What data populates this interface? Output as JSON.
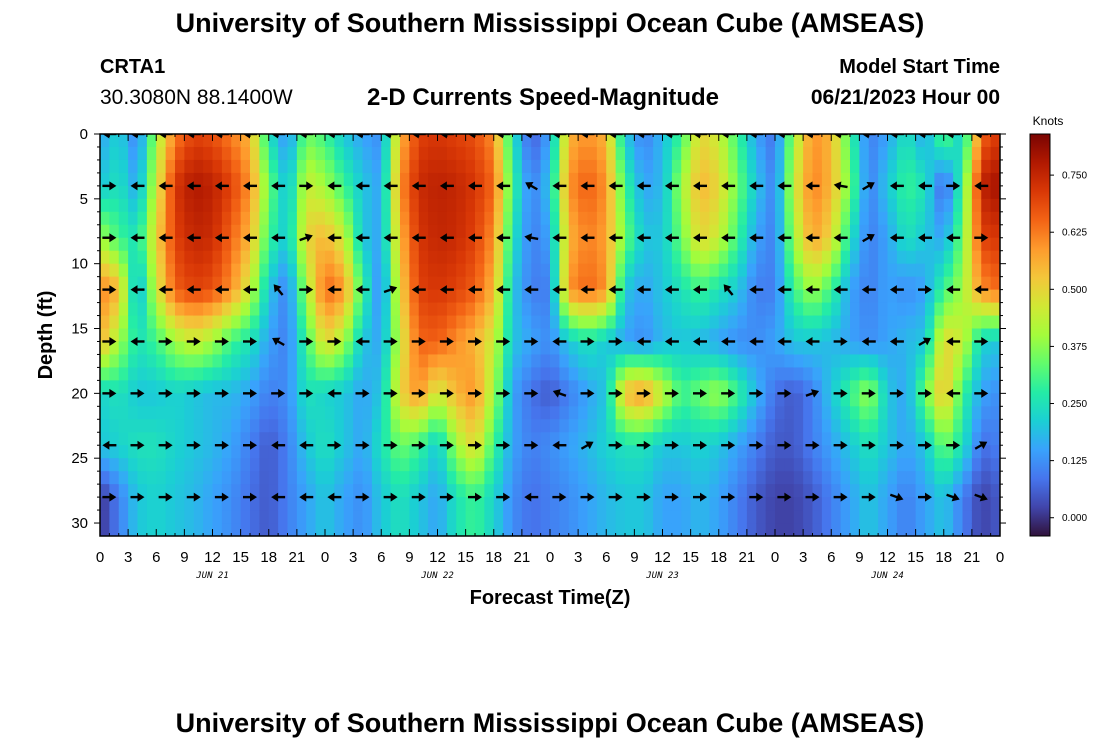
{
  "header": {
    "title": "University of Southern Mississippi Ocean Cube (AMSEAS)",
    "station_id": "CRTA1",
    "station_coords": "30.3080N  88.1400W",
    "subtitle": "2-D Currents Speed-Magnitude",
    "model_start_label": "Model Start Time",
    "model_start_value": "06/21/2023 Hour 00"
  },
  "footer": {
    "title": "University of Southern Mississippi Ocean Cube (AMSEAS)"
  },
  "chart_data": {
    "type": "heatmap",
    "title": "2-D Currents Speed-Magnitude",
    "xlabel": "Forecast Time(Z)",
    "ylabel": "Depth (ft)",
    "xlim": [
      0,
      96
    ],
    "ylim": [
      31,
      0
    ],
    "x_tick_hours": [
      0,
      3,
      6,
      9,
      12,
      15,
      18,
      21,
      24,
      27,
      30,
      33,
      36,
      39,
      42,
      45,
      48,
      51,
      54,
      57,
      60,
      63,
      66,
      69,
      72,
      75,
      78,
      81,
      84,
      87,
      90,
      93,
      96
    ],
    "x_tick_labels": [
      "0",
      "3",
      "6",
      "9",
      "12",
      "15",
      "18",
      "21",
      "0",
      "3",
      "6",
      "9",
      "12",
      "15",
      "18",
      "21",
      "0",
      "3",
      "6",
      "9",
      "12",
      "15",
      "18",
      "21",
      "0",
      "3",
      "6",
      "9",
      "12",
      "15",
      "18",
      "21",
      "0"
    ],
    "day_labels": [
      {
        "hour": 12,
        "label": "JUN 21"
      },
      {
        "hour": 36,
        "label": "JUN 22"
      },
      {
        "hour": 60,
        "label": "JUN 23"
      },
      {
        "hour": 84,
        "label": "JUN 24"
      }
    ],
    "y_ticks": [
      0,
      5,
      10,
      15,
      20,
      25,
      30
    ],
    "colorbar": {
      "unit": "Knots",
      "range": [
        -0.04,
        0.84
      ],
      "ticks": [
        0.0,
        0.125,
        0.25,
        0.375,
        0.5,
        0.625,
        0.75
      ],
      "tick_labels": [
        "0.000",
        "0.125",
        "0.250",
        "0.375",
        "0.500",
        "0.625",
        "0.750"
      ],
      "colors": [
        "#30123b",
        "#4145ab",
        "#4675ed",
        "#39a2fc",
        "#1bcfd4",
        "#24eca6",
        "#61fc6c",
        "#a4fc3b",
        "#d1e834",
        "#f3c63a",
        "#fe9b2d",
        "#f36315",
        "#d93806",
        "#b11901",
        "#7a0402"
      ]
    },
    "depths_ft": [
      0,
      4,
      8,
      12,
      16,
      20,
      24,
      28
    ],
    "speed_hours": [
      0,
      2,
      4,
      6,
      8,
      10,
      12,
      14,
      16,
      18,
      20,
      22,
      24,
      26,
      28,
      30,
      32,
      34,
      36,
      38,
      40,
      42,
      44,
      46,
      48,
      50,
      52,
      54,
      56,
      58,
      60,
      62,
      64,
      66,
      68,
      70,
      72,
      74,
      76,
      78,
      80,
      82,
      84,
      86,
      88,
      90,
      92,
      94,
      96
    ],
    "speed_knots": [
      [
        0.15,
        0.22,
        0.1,
        0.4,
        0.62,
        0.7,
        0.68,
        0.62,
        0.55,
        0.25,
        0.12,
        0.35,
        0.3,
        0.2,
        0.15,
        0.12,
        0.55,
        0.7,
        0.72,
        0.7,
        0.68,
        0.6,
        0.25,
        0.05,
        0.15,
        0.55,
        0.6,
        0.55,
        0.2,
        0.1,
        0.18,
        0.3,
        0.5,
        0.45,
        0.3,
        0.15,
        0.08,
        0.4,
        0.6,
        0.55,
        0.3,
        0.1,
        0.15,
        0.25,
        0.15,
        0.35,
        0.2,
        0.65,
        0.72
      ],
      [
        0.2,
        0.25,
        0.15,
        0.45,
        0.72,
        0.78,
        0.76,
        0.7,
        0.6,
        0.35,
        0.18,
        0.45,
        0.4,
        0.3,
        0.2,
        0.15,
        0.6,
        0.74,
        0.76,
        0.75,
        0.72,
        0.65,
        0.3,
        0.1,
        0.2,
        0.6,
        0.66,
        0.6,
        0.3,
        0.15,
        0.18,
        0.4,
        0.55,
        0.5,
        0.35,
        0.2,
        0.1,
        0.45,
        0.62,
        0.55,
        0.35,
        0.1,
        0.2,
        0.3,
        0.25,
        0.05,
        0.3,
        0.76,
        0.8
      ],
      [
        0.4,
        0.3,
        0.25,
        0.5,
        0.7,
        0.75,
        0.74,
        0.65,
        0.55,
        0.3,
        0.2,
        0.5,
        0.55,
        0.45,
        0.2,
        0.15,
        0.55,
        0.72,
        0.75,
        0.74,
        0.7,
        0.6,
        0.25,
        0.1,
        0.15,
        0.55,
        0.62,
        0.58,
        0.35,
        0.2,
        0.2,
        0.35,
        0.5,
        0.45,
        0.3,
        0.15,
        0.1,
        0.4,
        0.58,
        0.5,
        0.25,
        0.1,
        0.15,
        0.25,
        0.2,
        0.15,
        0.35,
        0.7,
        0.72
      ],
      [
        0.62,
        0.55,
        0.15,
        0.45,
        0.66,
        0.7,
        0.68,
        0.6,
        0.45,
        0.2,
        0.1,
        0.4,
        0.65,
        0.6,
        0.3,
        0.1,
        0.5,
        0.7,
        0.72,
        0.7,
        0.66,
        0.55,
        0.2,
        0.1,
        0.1,
        0.6,
        0.65,
        0.6,
        0.2,
        0.15,
        0.2,
        0.25,
        0.3,
        0.25,
        0.2,
        0.1,
        0.1,
        0.3,
        0.4,
        0.3,
        0.15,
        0.1,
        0.15,
        0.12,
        0.15,
        0.3,
        0.4,
        0.6,
        0.65
      ],
      [
        0.55,
        0.4,
        0.25,
        0.3,
        0.4,
        0.45,
        0.4,
        0.3,
        0.25,
        0.15,
        0.1,
        0.3,
        0.5,
        0.4,
        0.2,
        0.15,
        0.45,
        0.65,
        0.66,
        0.6,
        0.55,
        0.45,
        0.2,
        0.15,
        0.12,
        0.2,
        0.25,
        0.2,
        0.15,
        0.12,
        0.18,
        0.2,
        0.18,
        0.15,
        0.12,
        0.12,
        0.15,
        0.2,
        0.2,
        0.18,
        0.15,
        0.12,
        0.15,
        0.18,
        0.2,
        0.5,
        0.45,
        0.22,
        0.2
      ],
      [
        0.22,
        0.25,
        0.2,
        0.2,
        0.22,
        0.2,
        0.18,
        0.18,
        0.15,
        0.1,
        0.12,
        0.25,
        0.22,
        0.2,
        0.15,
        0.2,
        0.5,
        0.6,
        0.45,
        0.55,
        0.6,
        0.4,
        0.15,
        0.08,
        0.05,
        0.1,
        0.15,
        0.2,
        0.55,
        0.6,
        0.45,
        0.3,
        0.35,
        0.4,
        0.3,
        0.18,
        0.08,
        0.05,
        0.1,
        0.2,
        0.3,
        0.4,
        0.2,
        0.15,
        0.35,
        0.55,
        0.3,
        0.15,
        0.12
      ],
      [
        0.2,
        0.22,
        0.25,
        0.25,
        0.22,
        0.2,
        0.18,
        0.15,
        0.1,
        0.05,
        0.1,
        0.2,
        0.25,
        0.2,
        0.15,
        0.25,
        0.35,
        0.3,
        0.2,
        0.4,
        0.5,
        0.3,
        0.15,
        0.1,
        0.12,
        0.15,
        0.18,
        0.22,
        0.25,
        0.25,
        0.2,
        0.2,
        0.22,
        0.2,
        0.15,
        0.1,
        0.05,
        0.05,
        0.1,
        0.15,
        0.2,
        0.25,
        0.2,
        0.15,
        0.2,
        0.35,
        0.25,
        0.08,
        0.1
      ],
      [
        0.0,
        0.1,
        0.2,
        0.22,
        0.2,
        0.18,
        0.15,
        0.12,
        0.08,
        0.05,
        0.1,
        0.15,
        0.2,
        0.15,
        0.12,
        0.2,
        0.25,
        0.2,
        0.15,
        0.25,
        0.3,
        0.22,
        0.12,
        0.08,
        0.1,
        0.12,
        0.15,
        0.18,
        0.2,
        0.2,
        0.15,
        0.15,
        0.18,
        0.15,
        0.1,
        0.05,
        0.02,
        0.02,
        0.05,
        0.1,
        0.15,
        0.2,
        0.15,
        0.1,
        0.15,
        0.2,
        0.1,
        0.02,
        0.05
      ]
    ],
    "vector_hours": [
      1,
      4,
      7,
      10,
      13,
      16,
      19,
      22,
      25,
      28,
      31,
      34,
      37,
      40,
      43,
      46,
      49,
      52,
      55,
      58,
      61,
      64,
      67,
      70,
      73,
      76,
      79,
      82,
      85,
      88,
      91,
      94
    ],
    "direction_deg": [
      [
        180,
        180,
        180,
        180,
        180,
        180,
        180,
        180,
        180,
        180,
        180,
        180,
        180,
        180,
        180,
        180,
        180,
        180,
        180,
        180,
        180,
        180,
        180,
        180,
        180,
        180,
        180,
        180,
        180,
        180,
        180,
        180
      ],
      [
        0,
        180,
        180,
        180,
        180,
        180,
        180,
        0,
        180,
        180,
        180,
        180,
        180,
        180,
        180,
        150,
        180,
        180,
        180,
        180,
        180,
        180,
        180,
        180,
        180,
        180,
        170,
        30,
        180,
        180,
        0,
        180
      ],
      [
        0,
        180,
        180,
        180,
        180,
        180,
        180,
        20,
        180,
        180,
        180,
        180,
        180,
        180,
        180,
        170,
        180,
        180,
        180,
        180,
        180,
        180,
        180,
        180,
        180,
        180,
        180,
        30,
        180,
        180,
        180,
        0
      ],
      [
        0,
        180,
        180,
        180,
        180,
        180,
        130,
        0,
        180,
        180,
        20,
        180,
        180,
        180,
        180,
        180,
        180,
        180,
        180,
        180,
        180,
        180,
        130,
        180,
        180,
        180,
        180,
        180,
        180,
        0,
        180,
        180
      ],
      [
        0,
        180,
        0,
        0,
        0,
        0,
        150,
        0,
        0,
        180,
        0,
        0,
        0,
        0,
        0,
        0,
        180,
        0,
        0,
        180,
        180,
        180,
        180,
        180,
        180,
        180,
        0,
        180,
        180,
        30,
        180,
        0
      ],
      [
        0,
        0,
        0,
        0,
        0,
        0,
        0,
        0,
        180,
        0,
        0,
        0,
        0,
        0,
        0,
        0,
        160,
        0,
        0,
        0,
        0,
        0,
        0,
        0,
        0,
        20,
        0,
        0,
        0,
        0,
        180,
        0
      ],
      [
        180,
        0,
        0,
        0,
        0,
        0,
        180,
        180,
        0,
        0,
        0,
        0,
        0,
        0,
        0,
        0,
        180,
        30,
        0,
        0,
        0,
        0,
        0,
        0,
        0,
        0,
        0,
        0,
        0,
        0,
        0,
        30
      ],
      [
        0,
        0,
        0,
        0,
        0,
        0,
        180,
        180,
        180,
        0,
        0,
        0,
        0,
        0,
        0,
        180,
        0,
        0,
        0,
        0,
        0,
        0,
        0,
        0,
        0,
        0,
        0,
        0,
        -20,
        0,
        -20,
        -20
      ]
    ]
  }
}
